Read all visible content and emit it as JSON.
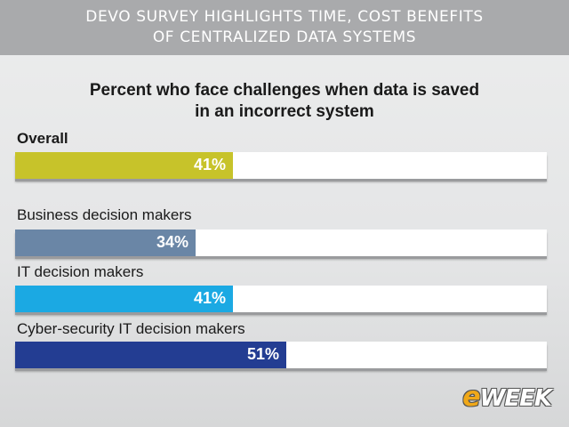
{
  "header": {
    "line1": "DEVO SURVEY HIGHLIGHTS TIME, COST BENEFITS",
    "line2": "OF CENTRALIZED DATA SYSTEMS"
  },
  "logo": {
    "prefix": "e",
    "rest": "WEEK"
  },
  "chart_data": {
    "type": "bar",
    "orientation": "horizontal",
    "title_lines": [
      "Percent who face challenges when data is saved",
      "in an incorrect system"
    ],
    "xlim": [
      0,
      100
    ],
    "bars": [
      {
        "category": "Overall",
        "value": 41,
        "label": "41%",
        "color": "#c7c32a"
      },
      {
        "category": "Business decision makers",
        "value": 34,
        "label": "34%",
        "color": "#6a86a6"
      },
      {
        "category": "IT decision makers",
        "value": 41,
        "label": "41%",
        "color": "#1ba9e3"
      },
      {
        "category": "Cyber-security IT decision makers",
        "value": 51,
        "label": "51%",
        "color": "#233d92"
      }
    ]
  }
}
